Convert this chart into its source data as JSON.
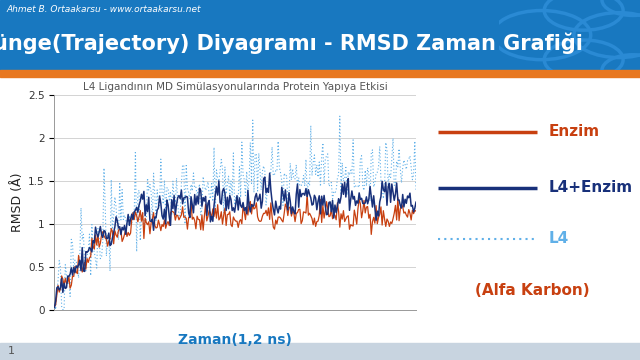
{
  "title": "Yörünge(Trajectory) Diyagramı - RMSD Zaman Grafiği",
  "subtitle": "L4 Ligandının MD Simülasyonularında Protein Yapıya Etkisi",
  "watermark": "Ahmet B. Ortaakarsu - www.ortaakarsu.net",
  "xlabel": "Zaman(1,2 ns)",
  "ylabel": "RMSD (Å)",
  "footnote": "1",
  "legend_labels": [
    "Enzim",
    "L4+Enzim",
    "L4"
  ],
  "legend_extra": "(Alfa Karbon)",
  "header_bg": "#1878c0",
  "header_orange_stripe": "#e87820",
  "body_bg": "#ffffff",
  "plot_bg": "#ffffff",
  "enzim_color": "#c84010",
  "l4enzim_color": "#18307a",
  "l4_color": "#60b0e8",
  "alfa_color": "#c84010",
  "ylim": [
    0,
    2.5
  ],
  "n_points": 300,
  "seed": 42,
  "title_fontsize": 15,
  "subtitle_fontsize": 7.5,
  "axis_label_fontsize": 9,
  "tick_fontsize": 7.5,
  "legend_fontsize": 11,
  "alfa_karbon_fontsize": 11,
  "watermark_fontsize": 6.5
}
